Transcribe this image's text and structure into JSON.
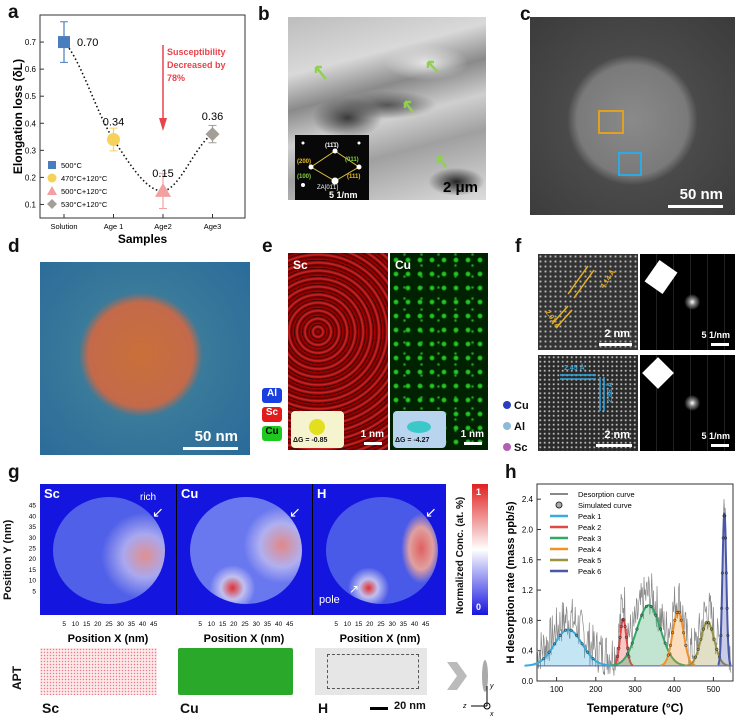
{
  "panel_labels": {
    "a": "a",
    "b": "b",
    "c": "c",
    "d": "d",
    "e": "e",
    "f": "f",
    "g": "g",
    "h": "h"
  },
  "chart_data": [
    {
      "id": "a",
      "type": "scatter",
      "xlabel": "Samples",
      "ylabel": "Elongation loss (δL)",
      "ylim": [
        0.05,
        0.8
      ],
      "yticks": [
        "0.1",
        "0.2",
        "0.3",
        "0.4",
        "0.5",
        "0.6",
        "0.7"
      ],
      "categories": [
        "Solution",
        "Age 1",
        "Age2",
        "Age3"
      ],
      "values": [
        0.7,
        0.34,
        0.15,
        0.36
      ],
      "errors": [
        0.075,
        0.042,
        0.065,
        0.032
      ],
      "data_labels": [
        "0.70",
        "0.34",
        "0.15",
        "0.36"
      ],
      "markers": [
        "square",
        "circle",
        "triangle",
        "diamond"
      ],
      "colors": [
        "#4a7dbd",
        "#f7d25a",
        "#f4a0a0",
        "#a39e98"
      ],
      "legend": [
        "500°C",
        "470°C+120°C",
        "500°C+120°C",
        "530°C+120°C"
      ],
      "legend_position": "bottom-left",
      "trend": "dotted",
      "annotation": {
        "lines": [
          "Susceptibility",
          "Decreased by",
          "78%"
        ],
        "color": "#e8434a"
      }
    },
    {
      "id": "h",
      "type": "line",
      "xlabel": "Temperature (°C)",
      "ylabel": "H desorption rate (mass ppb/s)",
      "xlim": [
        50,
        550
      ],
      "ylim": [
        0,
        2.6
      ],
      "xticks": [
        "100",
        "200",
        "300",
        "400",
        "500"
      ],
      "yticks": [
        "0.0",
        "0.4",
        "0.8",
        "1.2",
        "1.6",
        "2.0",
        "2.4"
      ],
      "baseline": 0.2,
      "legend": [
        "Desorption curve",
        "Simulated curve"
      ],
      "legend_position": "top-left",
      "series": [
        {
          "name": "Peak 1",
          "center": 130,
          "peak": 0.68,
          "sigma": 35,
          "color": "#3aaad8"
        },
        {
          "name": "Peak 2",
          "center": 270,
          "peak": 0.82,
          "sigma": 8,
          "color": "#e04848"
        },
        {
          "name": "Peak 3",
          "center": 335,
          "peak": 1.0,
          "sigma": 30,
          "color": "#33a866"
        },
        {
          "name": "Peak 4",
          "center": 410,
          "peak": 0.92,
          "sigma": 14,
          "color": "#f0922a"
        },
        {
          "name": "Peak 5",
          "center": 485,
          "peak": 0.78,
          "sigma": 17,
          "color": "#9a9440"
        },
        {
          "name": "Peak 6",
          "center": 528,
          "peak": 2.22,
          "sigma": 5,
          "color": "#4a56a8"
        }
      ]
    }
  ],
  "panel_b": {
    "scale_bar": "2 μm",
    "inset": {
      "spots": [
        "(11̄1̄)",
        "(200)",
        "(011)",
        "(100)",
        "(111)"
      ],
      "zone_axis": "ZA[01̄1]",
      "scale": "5 1/nm"
    }
  },
  "panel_c": {
    "scale_bar": "50 nm"
  },
  "panel_d": {
    "scale_bar": "50 nm"
  },
  "panel_e": {
    "legend": [
      "Al",
      "Sc",
      "Cu"
    ],
    "legend_colors": [
      "#1a3fe0",
      "#e21b1b",
      "#1fc81f"
    ],
    "maps": [
      {
        "element": "Sc",
        "dg": "ΔG = -0.85",
        "scale": "1 nm"
      },
      {
        "element": "Cu",
        "dg": "ΔG = -4.27",
        "scale": "1 nm"
      }
    ]
  },
  "panel_f": {
    "spacings": [
      "4.14 Å",
      "2.91 Å",
      "2.45 Å",
      "2.86 Å"
    ],
    "scale_real": "2 nm",
    "scale_fft": "5 1/nm",
    "legend": [
      "Cu",
      "Al",
      "Sc"
    ],
    "legend_colors": [
      "#2a3fbf",
      "#8fb9d8",
      "#b060b0"
    ]
  },
  "panel_g": {
    "maps": [
      {
        "element": "Sc",
        "note": "rich"
      },
      {
        "element": "Cu"
      },
      {
        "element": "H",
        "note": "pole"
      }
    ],
    "xlabel": "Position X (nm)",
    "ylabel": "Position Y (nm)",
    "ticks": [
      "5",
      "10",
      "15",
      "20",
      "25",
      "30",
      "35",
      "40",
      "45"
    ],
    "colorbar": {
      "label": "Normalized Conc. (at. %)",
      "max": "1",
      "min": "0"
    },
    "apt": {
      "row_label": "APT",
      "elements": [
        "Sc",
        "Cu",
        "H"
      ],
      "scale": "20 nm",
      "axes": [
        "y",
        "z",
        "x"
      ]
    }
  }
}
